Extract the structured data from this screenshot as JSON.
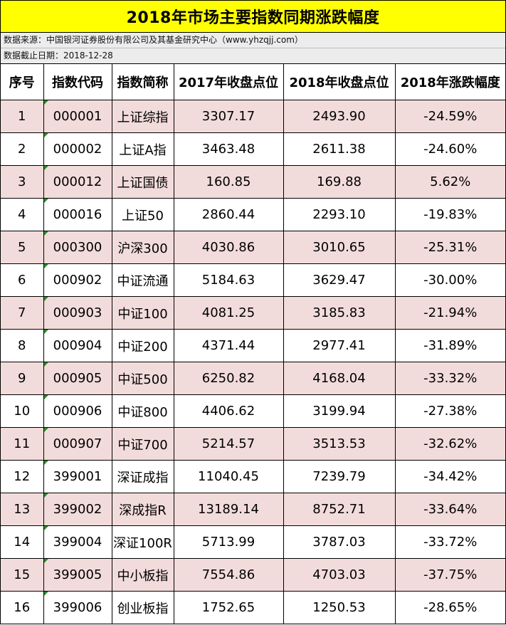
{
  "title": "2018年市场主要指数同期涨跌幅度",
  "source_line": "数据来源：中国银河证券股份有限公司及其基金研究中心（www.yhzqjj.com）",
  "date_line": "数据截止日期：2018-12-28",
  "headers": [
    "序号",
    "指数代码",
    "指数简称",
    "2017年收盘点位",
    "2018年收盘点位",
    "2018年涨跌幅度"
  ],
  "rows": [
    [
      "1",
      "000001",
      "上证综指",
      "3307.17",
      "2493.90",
      "-24.59%"
    ],
    [
      "2",
      "000002",
      "上证A指",
      "3463.48",
      "2611.38",
      "-24.60%"
    ],
    [
      "3",
      "000012",
      "上证国债",
      "160.85",
      "169.88",
      "5.62%"
    ],
    [
      "4",
      "000016",
      "上证50",
      "2860.44",
      "2293.10",
      "-19.83%"
    ],
    [
      "5",
      "000300",
      "沪深300",
      "4030.86",
      "3010.65",
      "-25.31%"
    ],
    [
      "6",
      "000902",
      "中证流通",
      "5184.63",
      "3629.47",
      "-30.00%"
    ],
    [
      "7",
      "000903",
      "中证100",
      "4081.25",
      "3185.83",
      "-21.94%"
    ],
    [
      "8",
      "000904",
      "中证200",
      "4371.44",
      "2977.41",
      "-31.89%"
    ],
    [
      "9",
      "000905",
      "中证500",
      "6250.82",
      "4168.04",
      "-33.32%"
    ],
    [
      "10",
      "000906",
      "中证800",
      "4406.62",
      "3199.94",
      "-27.38%"
    ],
    [
      "11",
      "000907",
      "中证700",
      "5214.57",
      "3513.53",
      "-32.62%"
    ],
    [
      "12",
      "399001",
      "深证成指",
      "11040.45",
      "7239.79",
      "-34.42%"
    ],
    [
      "13",
      "399002",
      "深成指R",
      "13189.14",
      "8752.71",
      "-33.64%"
    ],
    [
      "14",
      "399004",
      "深证100R",
      "5713.99",
      "3787.03",
      "-33.72%"
    ],
    [
      "15",
      "399005",
      "中小板指",
      "7554.86",
      "4703.03",
      "-37.75%"
    ],
    [
      "16",
      "399006",
      "创业板指",
      "1752.65",
      "1250.53",
      "-28.65%"
    ]
  ]
}
